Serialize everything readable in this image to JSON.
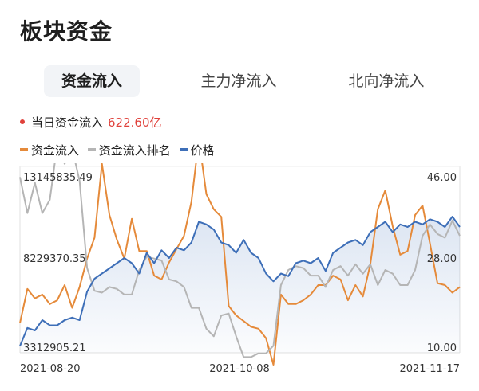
{
  "header": {
    "title": "板块资金"
  },
  "tabs": [
    {
      "label": "资金流入",
      "active": true
    },
    {
      "label": "主力净流入",
      "active": false
    },
    {
      "label": "北向净流入",
      "active": false
    }
  ],
  "summary": {
    "label": "当日资金流入",
    "value": "622.60亿",
    "color": "#e0403a"
  },
  "legend": [
    {
      "label": "资金流入",
      "color": "#e58a3a"
    },
    {
      "label": "资金流入排名",
      "color": "#b5b5b5"
    },
    {
      "label": "价格",
      "color": "#3e6fb8"
    }
  ],
  "chart_data": {
    "type": "line",
    "x_ticks": [
      "2021-08-20",
      "2021-10-08",
      "2021-11-17"
    ],
    "left_axis": {
      "ticks": [
        "13145835.49",
        "8229370.35",
        "3312905.21"
      ],
      "range": [
        3312905.21,
        13145835.49
      ]
    },
    "right_axis": {
      "ticks": [
        "46.00",
        "28.00",
        "10.00"
      ],
      "range": [
        10,
        46
      ]
    },
    "series": [
      {
        "name": "资金流入",
        "axis": "left",
        "color": "#e58a3a",
        "values": [
          4800000,
          6600000,
          6100000,
          6300000,
          5800000,
          6000000,
          6800000,
          5600000,
          6700000,
          8200000,
          9300000,
          13200000,
          10500000,
          9200000,
          8200000,
          10300000,
          8600000,
          8600000,
          7300000,
          7100000,
          8000000,
          8700000,
          9400000,
          11200000,
          14500000,
          11600000,
          10800000,
          10400000,
          5700000,
          5200000,
          4900000,
          4600000,
          4500000,
          4000000,
          2600000,
          6300000,
          5800000,
          5800000,
          6000000,
          6300000,
          6800000,
          6800000,
          7300000,
          7100000,
          6000000,
          6800000,
          6200000,
          7900000,
          10800000,
          11800000,
          9900000,
          8400000,
          8600000,
          10500000,
          11000000,
          9000000,
          6900000,
          6800000,
          6400000,
          6700000
        ]
      },
      {
        "name": "资金流入排名",
        "axis": "left",
        "color": "#b5b5b5",
        "values": [
          12500000,
          10600000,
          12200000,
          10600000,
          11300000,
          14200000,
          13200000,
          14000000,
          12300000,
          7700000,
          6500000,
          6400000,
          6700000,
          6600000,
          6300000,
          6300000,
          7600000,
          8300000,
          8200000,
          8100000,
          7100000,
          7000000,
          6700000,
          5600000,
          5600000,
          4500000,
          4100000,
          5200000,
          5300000,
          4100000,
          3000000,
          3000000,
          3200000,
          3200000,
          3600000,
          6800000,
          7600000,
          7800000,
          7700000,
          7300000,
          7300000,
          6700000,
          7600000,
          7800000,
          7300000,
          7900000,
          7400000,
          7900000,
          6800000,
          7600000,
          7400000,
          6800000,
          6800000,
          7600000,
          9400000,
          10000000,
          9500000,
          9300000,
          10200000,
          9400000
        ]
      },
      {
        "name": "价格",
        "axis": "right",
        "color": "#3e6fb8",
        "values": [
          11,
          14.5,
          14,
          16,
          15,
          15,
          16,
          16.5,
          16,
          21.5,
          24,
          25,
          26,
          27,
          28,
          27,
          25,
          29,
          27,
          29.5,
          28,
          30,
          29.5,
          31,
          35,
          34.5,
          33.5,
          31,
          30.5,
          29,
          31.5,
          29,
          28,
          25,
          23.5,
          25,
          24.5,
          27,
          27.5,
          27,
          28,
          25.5,
          29,
          30,
          31,
          31.5,
          30.5,
          33,
          34,
          35,
          33,
          34.5,
          34,
          35,
          34.5,
          35.5,
          35,
          34,
          36,
          34
        ]
      }
    ]
  }
}
